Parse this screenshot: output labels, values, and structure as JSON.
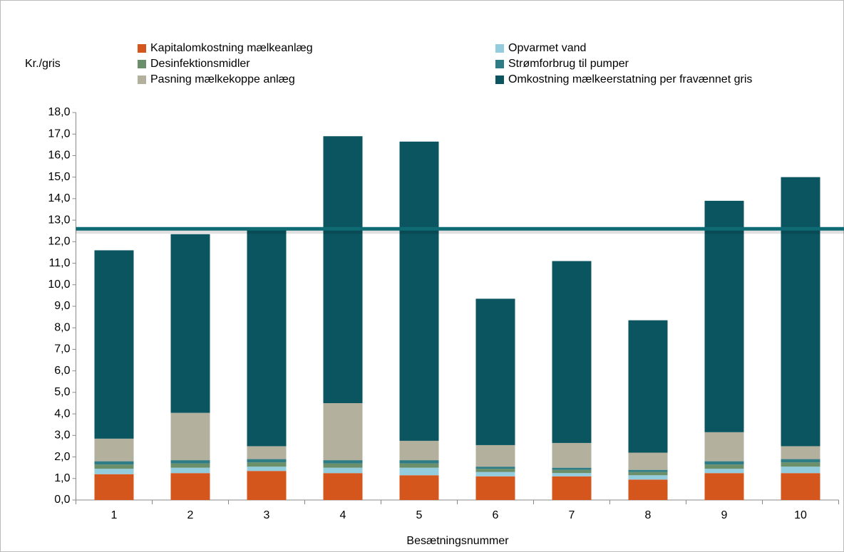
{
  "chart_data": {
    "type": "stacked_bar",
    "y_label": "Kr./gris",
    "x_label": "Besætningsnummer",
    "categories": [
      "1",
      "2",
      "3",
      "4",
      "5",
      "6",
      "7",
      "8",
      "9",
      "10"
    ],
    "series": [
      {
        "name": "Kapitalomkostning mælkeanlæg",
        "color": "#d4561c",
        "values": [
          1.2,
          1.25,
          1.35,
          1.25,
          1.15,
          1.1,
          1.1,
          0.95,
          1.25,
          1.25
        ]
      },
      {
        "name": "Opvarmet vand",
        "color": "#93cddd",
        "values": [
          0.25,
          0.25,
          0.2,
          0.25,
          0.35,
          0.2,
          0.15,
          0.2,
          0.2,
          0.3
        ]
      },
      {
        "name": "Desinfektionsmidler",
        "color": "#6b8f6b",
        "values": [
          0.2,
          0.2,
          0.2,
          0.2,
          0.2,
          0.15,
          0.15,
          0.15,
          0.2,
          0.2
        ]
      },
      {
        "name": "Strømforbrug til pumper",
        "color": "#2e7c85",
        "values": [
          0.15,
          0.15,
          0.15,
          0.15,
          0.15,
          0.1,
          0.1,
          0.1,
          0.15,
          0.15
        ]
      },
      {
        "name": "Pasning mælkekoppe anlæg",
        "color": "#b3b09e",
        "values": [
          1.05,
          2.2,
          0.6,
          2.65,
          0.9,
          1.0,
          1.15,
          0.8,
          1.35,
          0.6
        ]
      },
      {
        "name": "Omkostning mælkeerstatning per fravænnet gris",
        "color": "#0b5560",
        "values": [
          8.75,
          8.3,
          10.1,
          12.4,
          13.9,
          6.8,
          8.45,
          6.15,
          10.75,
          12.5
        ]
      }
    ],
    "reference_line": 12.6,
    "reference_color": "#0e6b73",
    "ylim": [
      0,
      18
    ],
    "yticks": [
      {
        "value": 0,
        "label": "0,0"
      },
      {
        "value": 1,
        "label": "1,0"
      },
      {
        "value": 2,
        "label": "2,0"
      },
      {
        "value": 3,
        "label": "3,0"
      },
      {
        "value": 4,
        "label": "4,0"
      },
      {
        "value": 5,
        "label": "5,0"
      },
      {
        "value": 6,
        "label": "6,0"
      },
      {
        "value": 7,
        "label": "7,0"
      },
      {
        "value": 8,
        "label": "8,0"
      },
      {
        "value": 9,
        "label": "9,0"
      },
      {
        "value": 10,
        "label": "10,0"
      },
      {
        "value": 11,
        "label": "11,0"
      },
      {
        "value": 12,
        "label": "12,0"
      },
      {
        "value": 13,
        "label": "13,0"
      },
      {
        "value": 14,
        "label": "14,0"
      },
      {
        "value": 15,
        "label": "15,0"
      },
      {
        "value": 16,
        "label": "16,0"
      },
      {
        "value": 17,
        "label": "17,0"
      },
      {
        "value": 18,
        "label": "18,0"
      }
    ],
    "grid": false
  }
}
